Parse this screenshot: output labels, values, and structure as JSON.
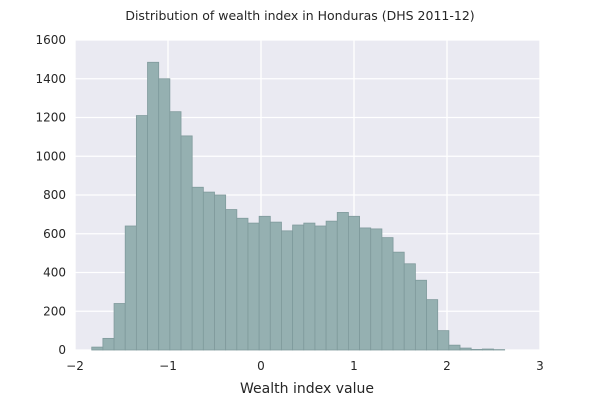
{
  "chart_data": {
    "type": "bar",
    "subtype": "histogram",
    "title": "Distribution of wealth index in Honduras (DHS 2011-12)",
    "xlabel": "Wealth index value",
    "ylabel": "",
    "xlim": [
      -2,
      3
    ],
    "ylim": [
      0,
      1600
    ],
    "xticks": [
      "−2",
      "−1",
      "0",
      "1",
      "2",
      "3"
    ],
    "yticks": [
      "0",
      "200",
      "400",
      "600",
      "800",
      "1000",
      "1200",
      "1400",
      "1600"
    ],
    "grid": true,
    "background_color": "#eaeaf2",
    "bar_color": "#95b0b1",
    "bar_edge_color": "#7f9a9c",
    "bins": [
      {
        "x0": -1.82,
        "x1": -1.7,
        "count": 15
      },
      {
        "x0": -1.7,
        "x1": -1.58,
        "count": 60
      },
      {
        "x0": -1.58,
        "x1": -1.46,
        "count": 240
      },
      {
        "x0": -1.46,
        "x1": -1.34,
        "count": 640
      },
      {
        "x0": -1.34,
        "x1": -1.22,
        "count": 1210
      },
      {
        "x0": -1.22,
        "x1": -1.1,
        "count": 1485
      },
      {
        "x0": -1.1,
        "x1": -0.98,
        "count": 1400
      },
      {
        "x0": -0.98,
        "x1": -0.86,
        "count": 1230
      },
      {
        "x0": -0.86,
        "x1": -0.74,
        "count": 1105
      },
      {
        "x0": -0.74,
        "x1": -0.62,
        "count": 840
      },
      {
        "x0": -0.62,
        "x1": -0.5,
        "count": 815
      },
      {
        "x0": -0.5,
        "x1": -0.38,
        "count": 800
      },
      {
        "x0": -0.38,
        "x1": -0.26,
        "count": 725
      },
      {
        "x0": -0.26,
        "x1": -0.14,
        "count": 680
      },
      {
        "x0": -0.14,
        "x1": -0.02,
        "count": 655
      },
      {
        "x0": -0.02,
        "x1": 0.1,
        "count": 690
      },
      {
        "x0": 0.1,
        "x1": 0.22,
        "count": 660
      },
      {
        "x0": 0.22,
        "x1": 0.34,
        "count": 615
      },
      {
        "x0": 0.34,
        "x1": 0.46,
        "count": 645
      },
      {
        "x0": 0.46,
        "x1": 0.58,
        "count": 655
      },
      {
        "x0": 0.58,
        "x1": 0.7,
        "count": 640
      },
      {
        "x0": 0.7,
        "x1": 0.82,
        "count": 665
      },
      {
        "x0": 0.82,
        "x1": 0.94,
        "count": 710
      },
      {
        "x0": 0.94,
        "x1": 1.06,
        "count": 690
      },
      {
        "x0": 1.06,
        "x1": 1.18,
        "count": 630
      },
      {
        "x0": 1.18,
        "x1": 1.3,
        "count": 625
      },
      {
        "x0": 1.3,
        "x1": 1.42,
        "count": 580
      },
      {
        "x0": 1.42,
        "x1": 1.54,
        "count": 505
      },
      {
        "x0": 1.54,
        "x1": 1.66,
        "count": 445
      },
      {
        "x0": 1.66,
        "x1": 1.78,
        "count": 360
      },
      {
        "x0": 1.78,
        "x1": 1.9,
        "count": 260
      },
      {
        "x0": 1.9,
        "x1": 2.02,
        "count": 100
      },
      {
        "x0": 2.02,
        "x1": 2.14,
        "count": 25
      },
      {
        "x0": 2.14,
        "x1": 2.26,
        "count": 10
      },
      {
        "x0": 2.26,
        "x1": 2.38,
        "count": 3
      },
      {
        "x0": 2.38,
        "x1": 2.5,
        "count": 5
      },
      {
        "x0": 2.5,
        "x1": 2.62,
        "count": 2
      }
    ]
  }
}
